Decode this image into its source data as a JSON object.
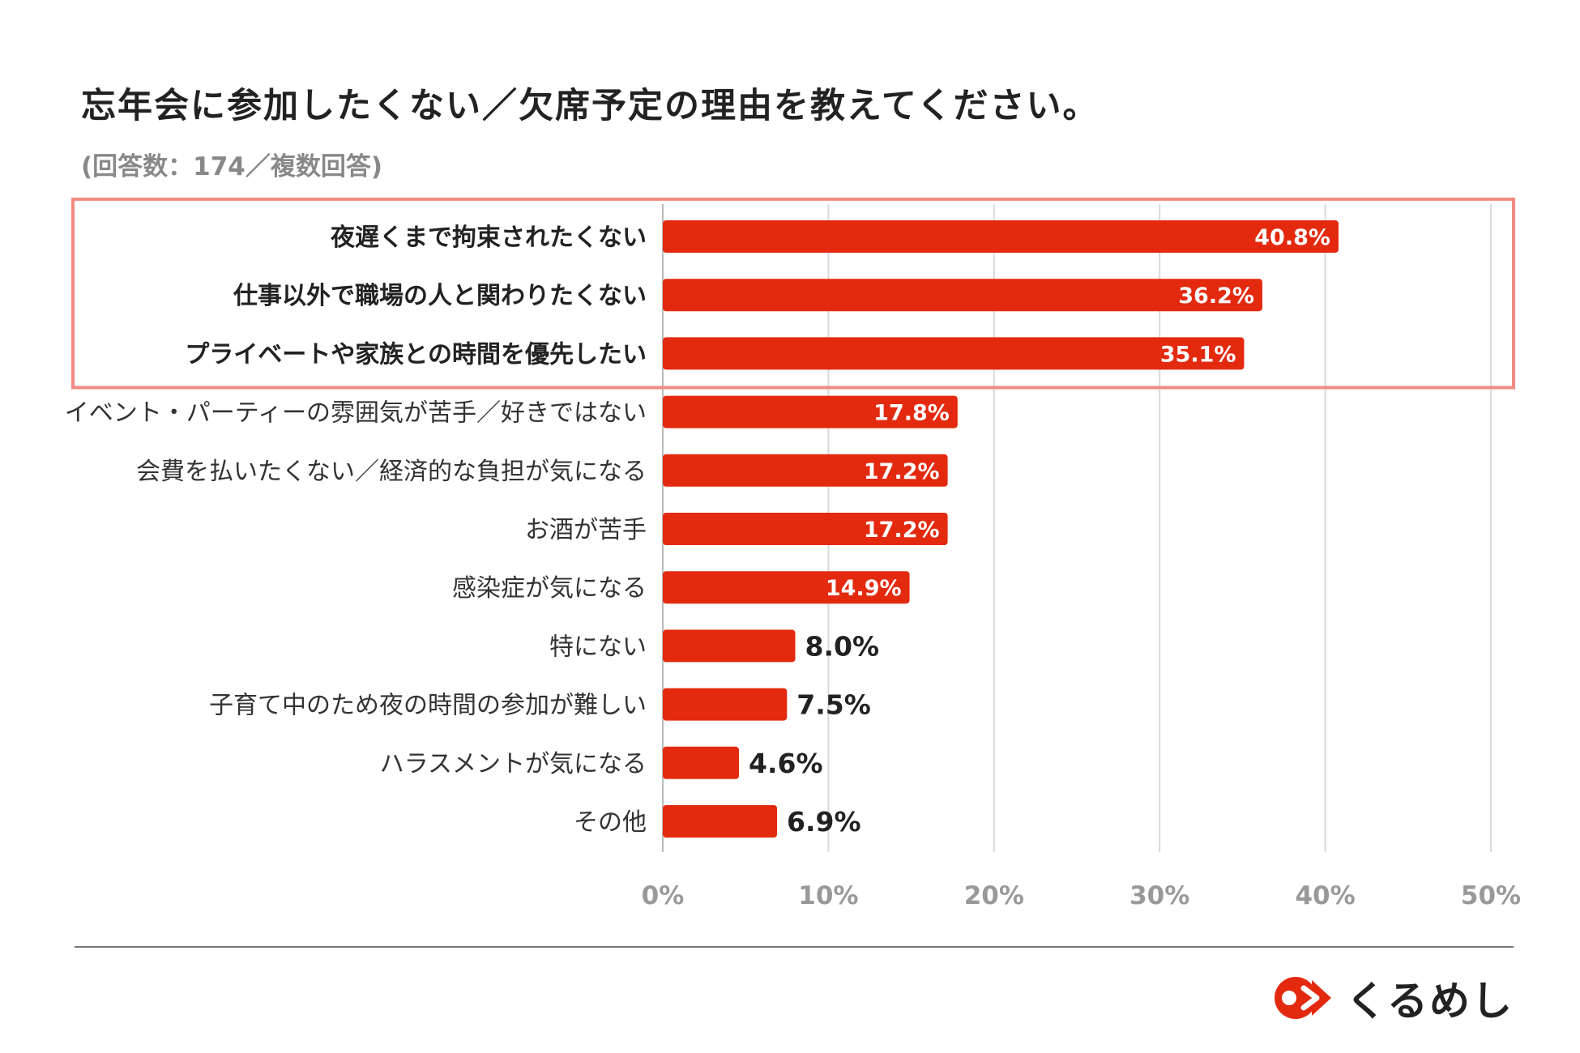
{
  "title": "忘年会に参加したくない／欠席予定の理由を教えてください。",
  "subtitle": "(回答数：174／複数回答)",
  "brand": "くるめし",
  "colors": {
    "bar": "#e32a0f",
    "highlight": "#f28b82",
    "grid": "#d9d9d9"
  },
  "chart_data": {
    "type": "bar",
    "orientation": "horizontal",
    "title": "忘年会に参加したくない／欠席予定の理由を教えてください。",
    "categories": [
      "夜遅くまで拘束されたくない",
      "仕事以外で職場の人と関わりたくない",
      "プライベートや家族との時間を優先したい",
      "イベント・パーティーの雰囲気が苦手／好きではない",
      "会費を払いたくない／経済的な負担が気になる",
      "お酒が苦手",
      "感染症が気になる",
      "特にない",
      "子育て中のため夜の時間の参加が難しい",
      "ハラスメントが気になる",
      "その他"
    ],
    "values": [
      40.8,
      36.2,
      35.1,
      17.8,
      17.2,
      17.2,
      14.9,
      8.0,
      7.5,
      4.6,
      6.9
    ],
    "value_labels": [
      "40.8%",
      "36.2%",
      "35.1%",
      "17.8%",
      "17.2%",
      "17.2%",
      "14.9%",
      "8.0%",
      "7.5%",
      "4.6%",
      "6.9%"
    ],
    "highlighted": [
      0,
      1,
      2
    ],
    "xlim": [
      0,
      50
    ],
    "xticks": [
      0,
      10,
      20,
      30,
      40,
      50
    ],
    "xtick_labels": [
      "0%",
      "10%",
      "20%",
      "30%",
      "40%",
      "50%"
    ],
    "grid": true
  }
}
